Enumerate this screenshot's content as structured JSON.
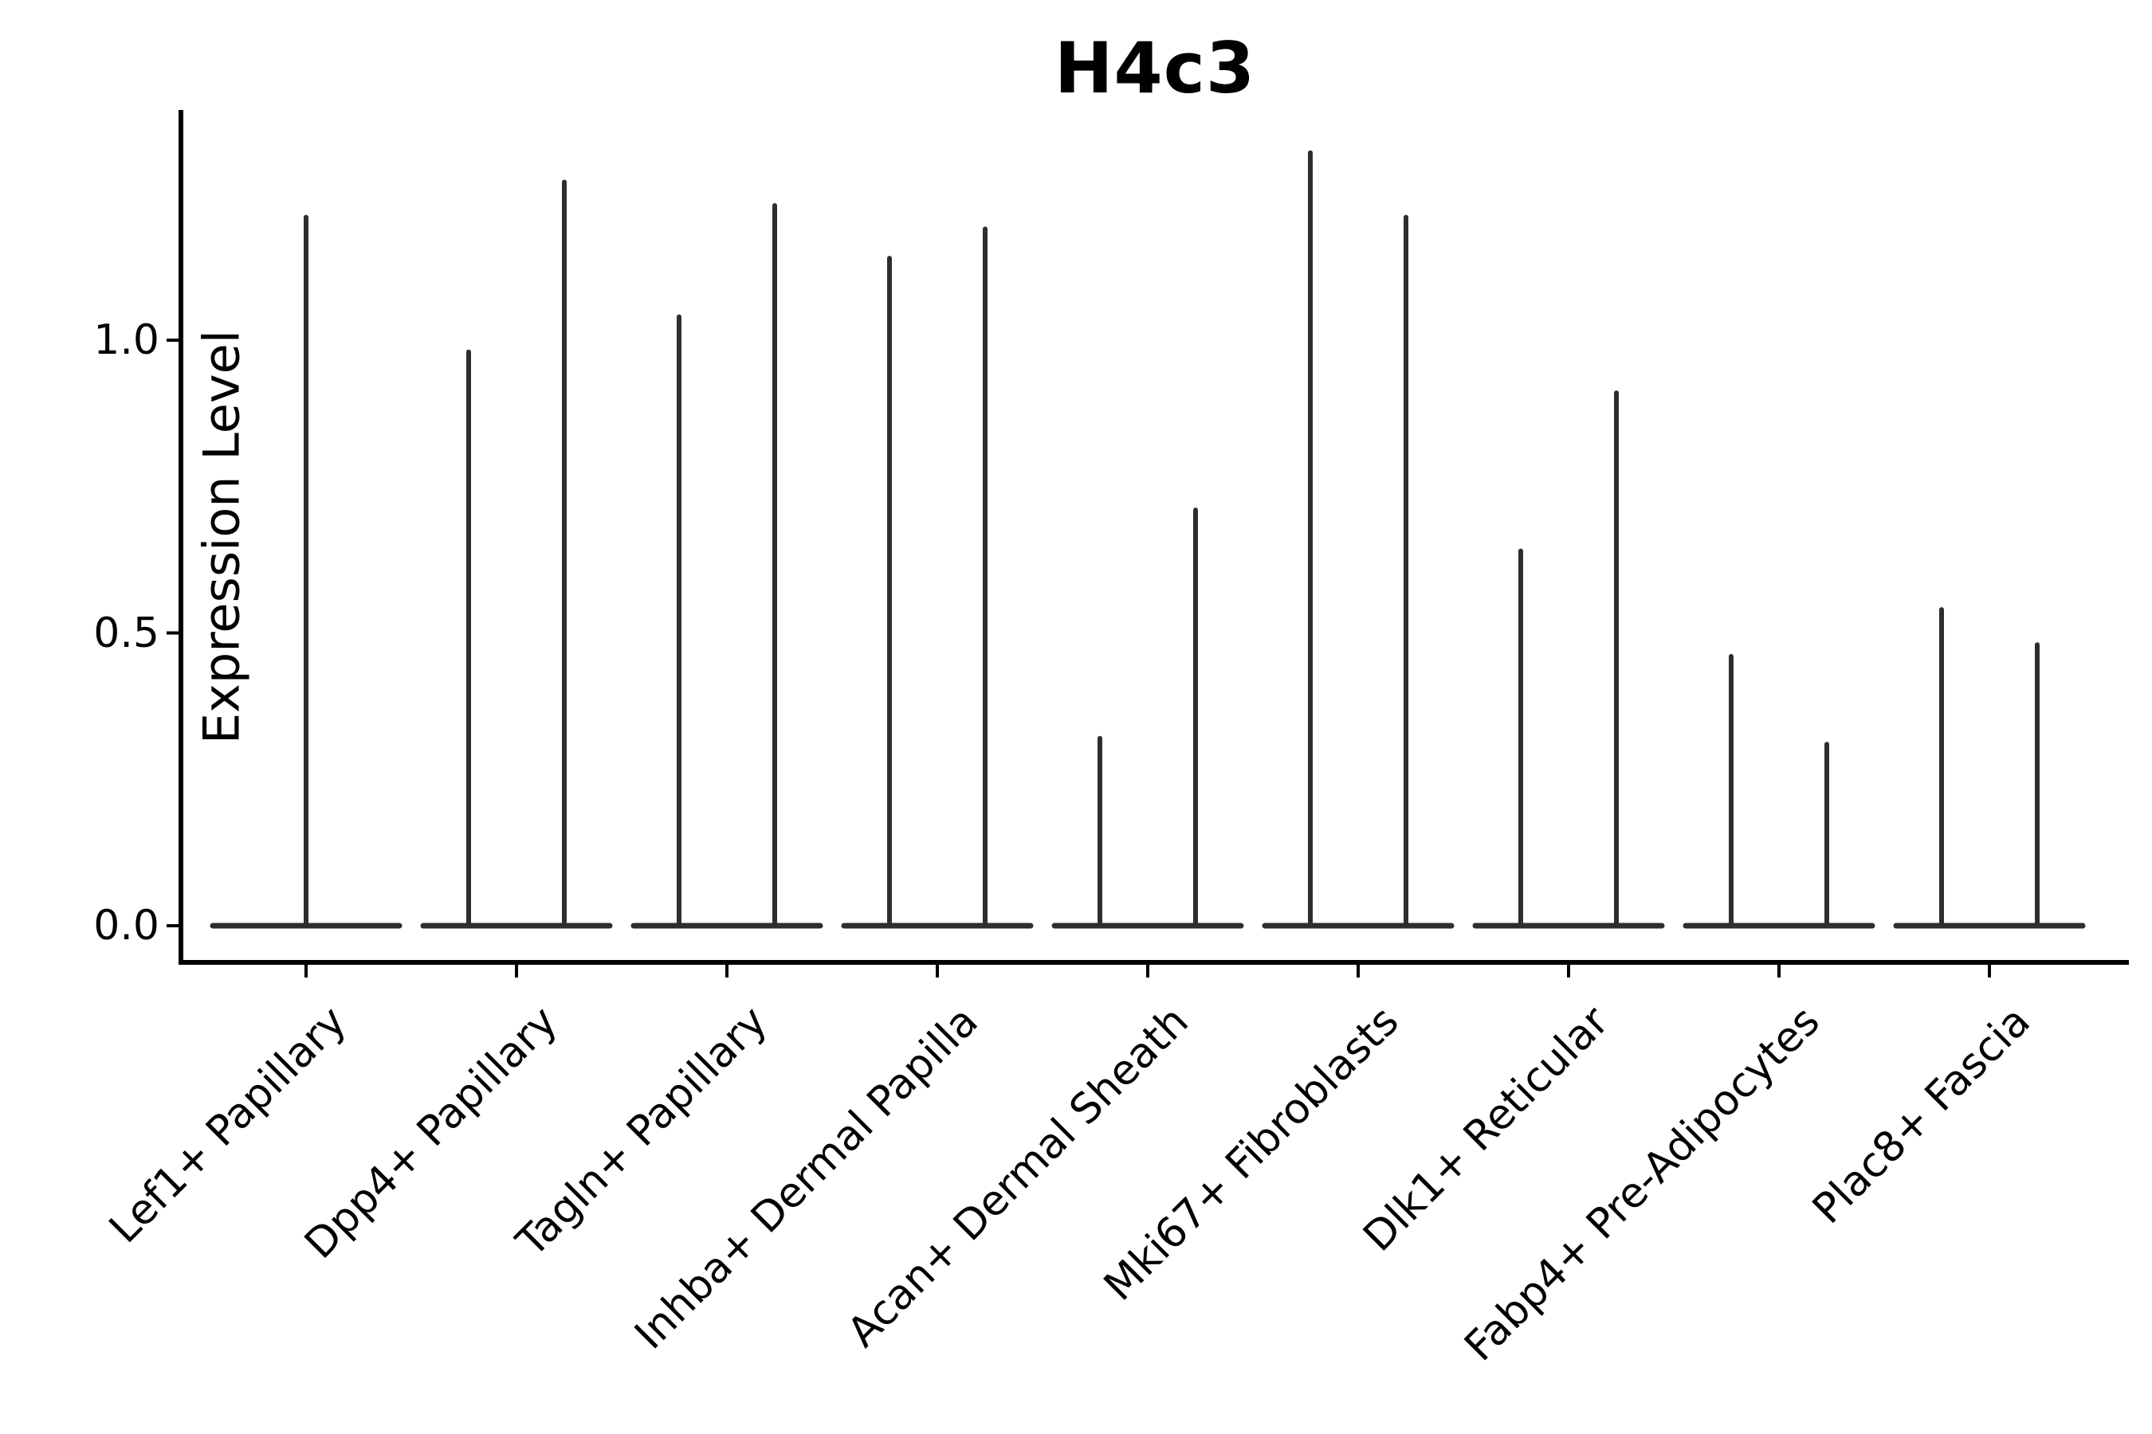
{
  "title": "H4c3",
  "axes": {
    "ylabel": "Expression Level",
    "yticks": [
      {
        "label": "0.0",
        "value": 0.0
      },
      {
        "label": "0.5",
        "value": 0.5
      },
      {
        "label": "1.0",
        "value": 1.0
      }
    ]
  },
  "chart_data": {
    "type": "violin",
    "title": "H4c3",
    "xlabel": "",
    "ylabel": "Expression Level",
    "ylim": [
      0,
      1.39
    ],
    "ytick_values": [
      0.0,
      0.5,
      1.0
    ],
    "grid": "off",
    "legend": "none",
    "categories": [
      "Lef1+ Papillary",
      "Dpp4+ Papillary",
      "Tagln+ Papillary",
      "Inhba+ Dermal Papilla",
      "Acan+ Dermal Sheath",
      "Mki67+ Fibroblasts",
      "Dlk1+ Reticular",
      "Fabp4+ Pre-Adipocytes",
      "Plac8+ Fascia"
    ],
    "baseline_value": 0.0,
    "peaks_per_category": [
      [
        1.21
      ],
      [
        0.98,
        1.27
      ],
      [
        1.04,
        1.23
      ],
      [
        1.14,
        1.19
      ],
      [
        0.32,
        0.71
      ],
      [
        1.32,
        1.21
      ],
      [
        0.64,
        0.91
      ],
      [
        0.46,
        0.31
      ],
      [
        0.54,
        0.48
      ]
    ]
  },
  "colors": {
    "violin_stroke": "#2e2e2e",
    "axis": "#000000",
    "text": "#000000",
    "background": "#ffffff"
  }
}
